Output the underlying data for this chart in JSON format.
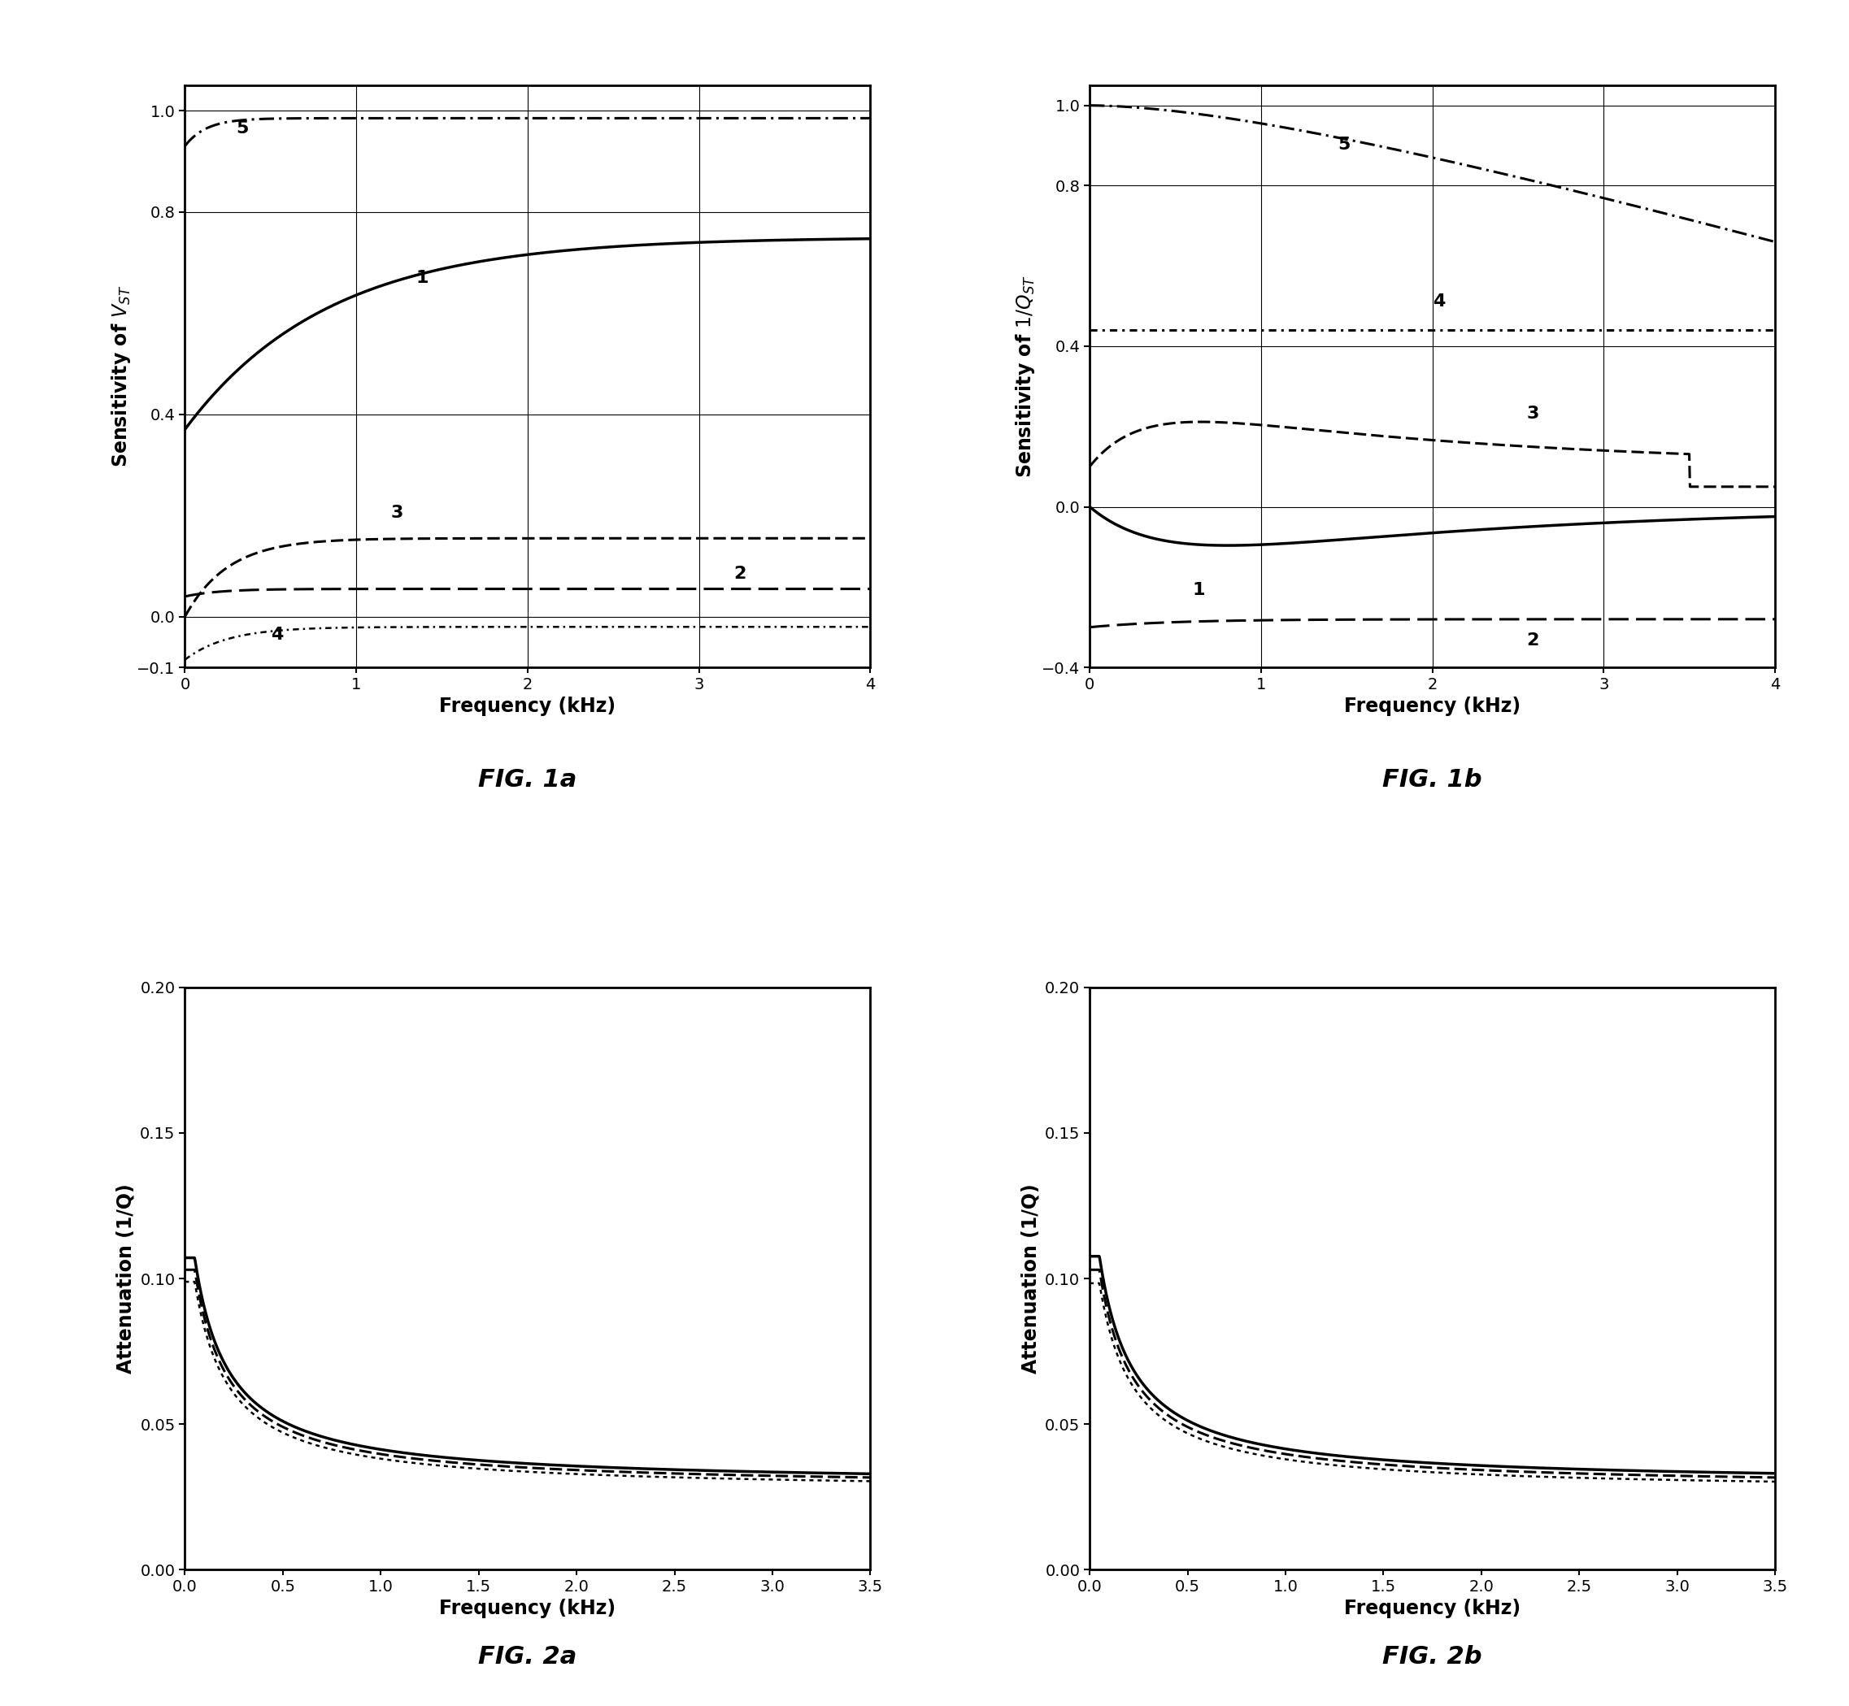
{
  "fig1a": {
    "title": "FIG. 1a",
    "xlabel": "Frequency (kHz)",
    "ylabel": "Sensitivity of $V_{ST}$",
    "xlim": [
      0,
      4
    ],
    "ylim": [
      -0.1,
      1.05
    ],
    "yticks": [
      -0.1,
      0,
      0.4,
      0.8,
      1
    ],
    "xticks": [
      0,
      1,
      2,
      3,
      4
    ]
  },
  "fig1b": {
    "title": "FIG. 1b",
    "xlabel": "Frequency (kHz)",
    "ylabel": "Sensitivity of $1/Q_{ST}$",
    "xlim": [
      0,
      4
    ],
    "ylim": [
      -0.4,
      1.05
    ],
    "yticks": [
      -0.4,
      0,
      0.4,
      0.8,
      1
    ],
    "xticks": [
      0,
      1,
      2,
      3,
      4
    ]
  },
  "fig2a": {
    "title": "FIG. 2a",
    "xlabel": "Frequency (kHz)",
    "ylabel": "Attenuation (1/Q)",
    "xlim": [
      0,
      3.5
    ],
    "ylim": [
      0,
      0.2
    ],
    "yticks": [
      0,
      0.05,
      0.1,
      0.15,
      0.2
    ],
    "xticks": [
      0,
      0.5,
      1.0,
      1.5,
      2.0,
      2.5,
      3.0,
      3.5
    ]
  },
  "fig2b": {
    "title": "FIG. 2b",
    "xlabel": "Frequency (kHz)",
    "ylabel": "Attenuation (1/Q)",
    "xlim": [
      0,
      3.5
    ],
    "ylim": [
      0,
      0.2
    ],
    "yticks": [
      0,
      0.05,
      0.1,
      0.15,
      0.2
    ],
    "xticks": [
      0,
      0.5,
      1.0,
      1.5,
      2.0,
      2.5,
      3.0,
      3.5
    ]
  },
  "background_color": "#ffffff",
  "line_color": "#000000"
}
